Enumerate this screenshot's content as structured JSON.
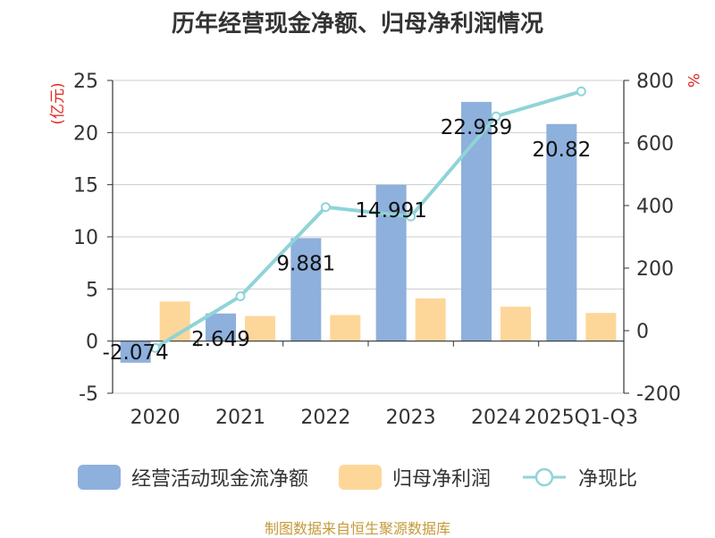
{
  "chart_data": {
    "type": "bar",
    "title": "历年经营现金净额、归母净利润情况",
    "categories": [
      "2020",
      "2021",
      "2022",
      "2023",
      "2024",
      "2025Q1-Q3"
    ],
    "series": [
      {
        "name": "经营活动现金流净额",
        "type": "bar",
        "axis": "left",
        "color": "#8eb0dc",
        "values": [
          -2.074,
          2.649,
          9.881,
          14.991,
          22.939,
          20.82
        ],
        "labels": [
          "-2.074",
          "2.649",
          "9.881",
          "14.991",
          "22.939",
          "20.82"
        ]
      },
      {
        "name": "归母净利润",
        "type": "bar",
        "axis": "left",
        "color": "#fdd799",
        "values": [
          3.8,
          2.4,
          2.5,
          4.1,
          3.3,
          2.7
        ]
      },
      {
        "name": "净现比",
        "type": "line",
        "axis": "right",
        "color": "#8fd4d8",
        "values": [
          -55,
          110,
          395,
          365,
          685,
          765
        ]
      }
    ],
    "left_axis": {
      "label": "(亿元)",
      "min": -5,
      "max": 25,
      "ticks": [
        -5,
        0,
        5,
        10,
        15,
        20,
        25
      ]
    },
    "right_axis": {
      "label": "%",
      "min": -200,
      "max": 800,
      "ticks": [
        -200,
        0,
        200,
        400,
        600,
        800
      ]
    },
    "grid": true,
    "legend_position": "bottom"
  },
  "footer": {
    "text": "制图数据来自恒生聚源数据库"
  },
  "colors": {
    "title": "#333333",
    "axis": "#333333",
    "grid": "#cccccc",
    "unit": "#e0271f",
    "footer": "#c49a3a"
  }
}
